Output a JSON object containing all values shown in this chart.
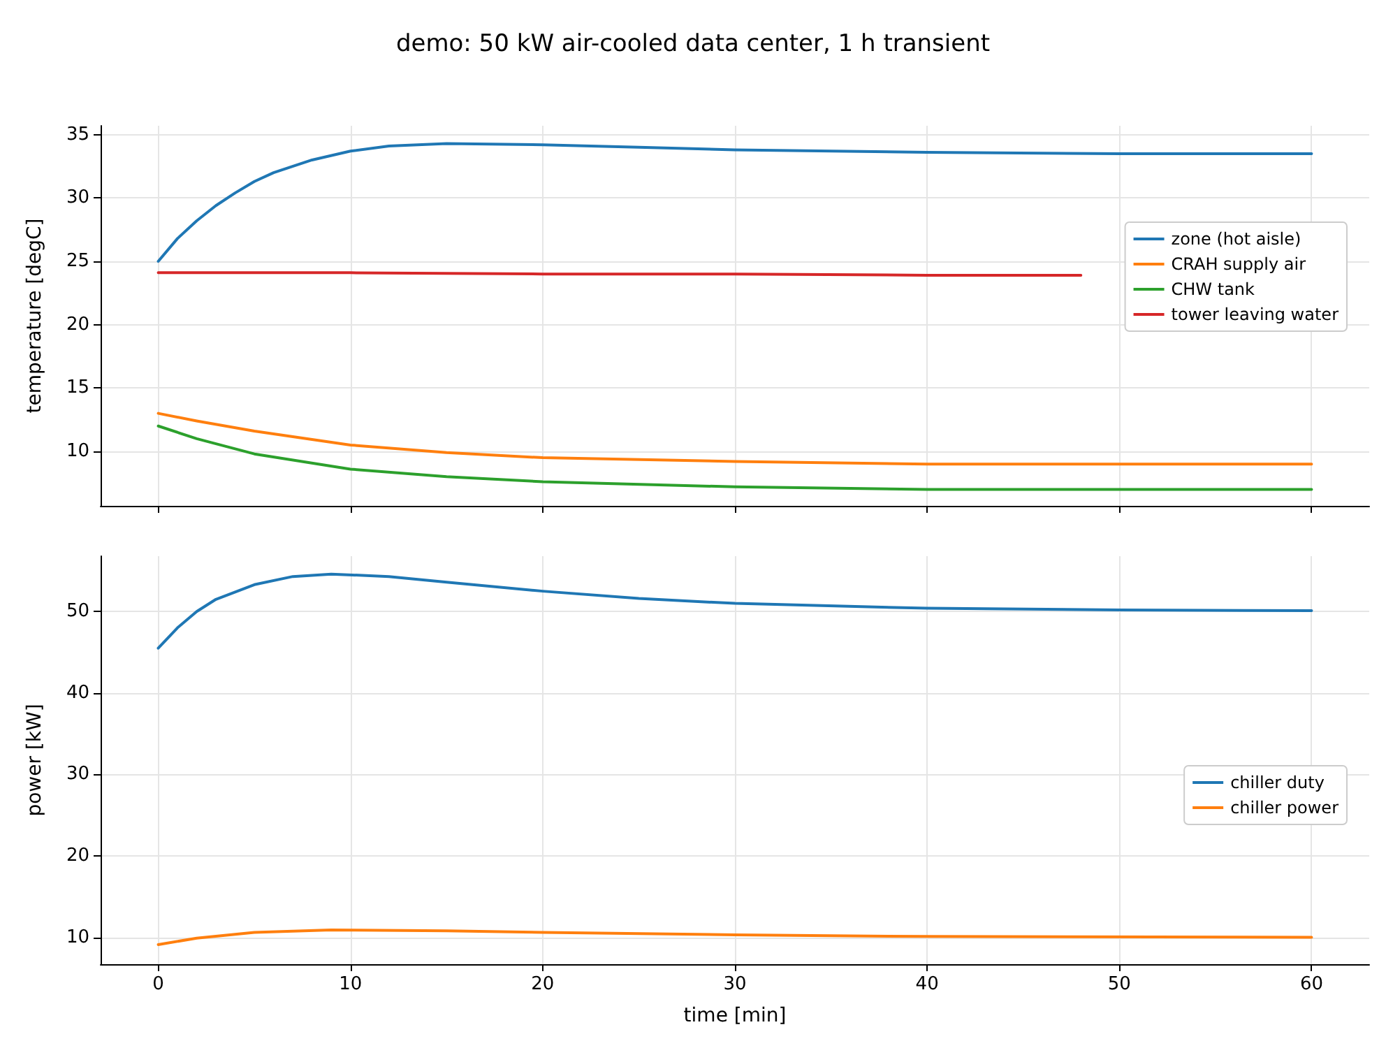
{
  "chart_data": [
    {
      "type": "line",
      "title": "demo: 50 kW air-cooled data center, 1 h transient",
      "ylabel": "temperature [degC]",
      "xlim": [
        -3,
        63
      ],
      "xticks": [
        0,
        10,
        20,
        30,
        40,
        50,
        60
      ],
      "ylim": [
        5.7,
        35.7
      ],
      "yticks": [
        10,
        15,
        20,
        25,
        30,
        35
      ],
      "grid": true,
      "legend": "center right",
      "tick_labels": "y",
      "marker": "none",
      "line_style": "solid",
      "series": [
        {
          "name": "zone (hot aisle)",
          "color": "#1f77b4",
          "x": [
            0,
            1,
            2,
            3,
            4,
            5,
            6,
            8,
            10,
            12,
            15,
            20,
            25,
            30,
            40,
            50,
            60
          ],
          "values": [
            25,
            26.8,
            28.2,
            29.4,
            30.4,
            31.3,
            32.0,
            33.0,
            33.7,
            34.1,
            34.3,
            34.2,
            34.0,
            33.8,
            33.6,
            33.5,
            33.5
          ]
        },
        {
          "name": "CRAH supply air",
          "color": "#ff7f0e",
          "x": [
            0,
            2,
            5,
            10,
            15,
            20,
            30,
            40,
            50,
            60
          ],
          "values": [
            13,
            12.4,
            11.6,
            10.5,
            9.9,
            9.5,
            9.2,
            9.0,
            9.0,
            9.0
          ]
        },
        {
          "name": "CHW tank",
          "color": "#2ca02c",
          "x": [
            0,
            2,
            5,
            10,
            15,
            20,
            30,
            40,
            50,
            60
          ],
          "values": [
            12,
            11,
            9.8,
            8.6,
            8.0,
            7.6,
            7.2,
            7.0,
            7.0,
            7.0
          ]
        },
        {
          "name": "tower leaving water",
          "color": "#d62728",
          "x": [
            0,
            5,
            10,
            20,
            30,
            40,
            48
          ],
          "values": [
            24.1,
            24.1,
            24.1,
            24.0,
            24.0,
            23.9,
            23.9
          ]
        }
      ]
    },
    {
      "type": "line",
      "xlabel": "time [min]",
      "ylabel": "power [kW]",
      "xlim": [
        -3,
        63
      ],
      "xticks": [
        0,
        10,
        20,
        30,
        40,
        50,
        60
      ],
      "ylim": [
        6.7,
        56.8
      ],
      "yticks": [
        10,
        20,
        30,
        40,
        50
      ],
      "grid": true,
      "legend": "center right",
      "marker": "none",
      "line_style": "solid",
      "series": [
        {
          "name": "chiller duty",
          "color": "#1f77b4",
          "x": [
            0,
            1,
            2,
            3,
            5,
            7,
            9,
            12,
            15,
            20,
            25,
            30,
            40,
            50,
            60
          ],
          "values": [
            45.5,
            48,
            50,
            51.5,
            53.3,
            54.3,
            54.6,
            54.3,
            53.6,
            52.5,
            51.6,
            51,
            50.4,
            50.2,
            50.1
          ]
        },
        {
          "name": "chiller power",
          "color": "#ff7f0e",
          "x": [
            0,
            2,
            5,
            9,
            15,
            20,
            30,
            40,
            60
          ],
          "values": [
            9.1,
            9.9,
            10.6,
            10.9,
            10.8,
            10.6,
            10.3,
            10.1,
            10.0
          ]
        }
      ]
    }
  ]
}
